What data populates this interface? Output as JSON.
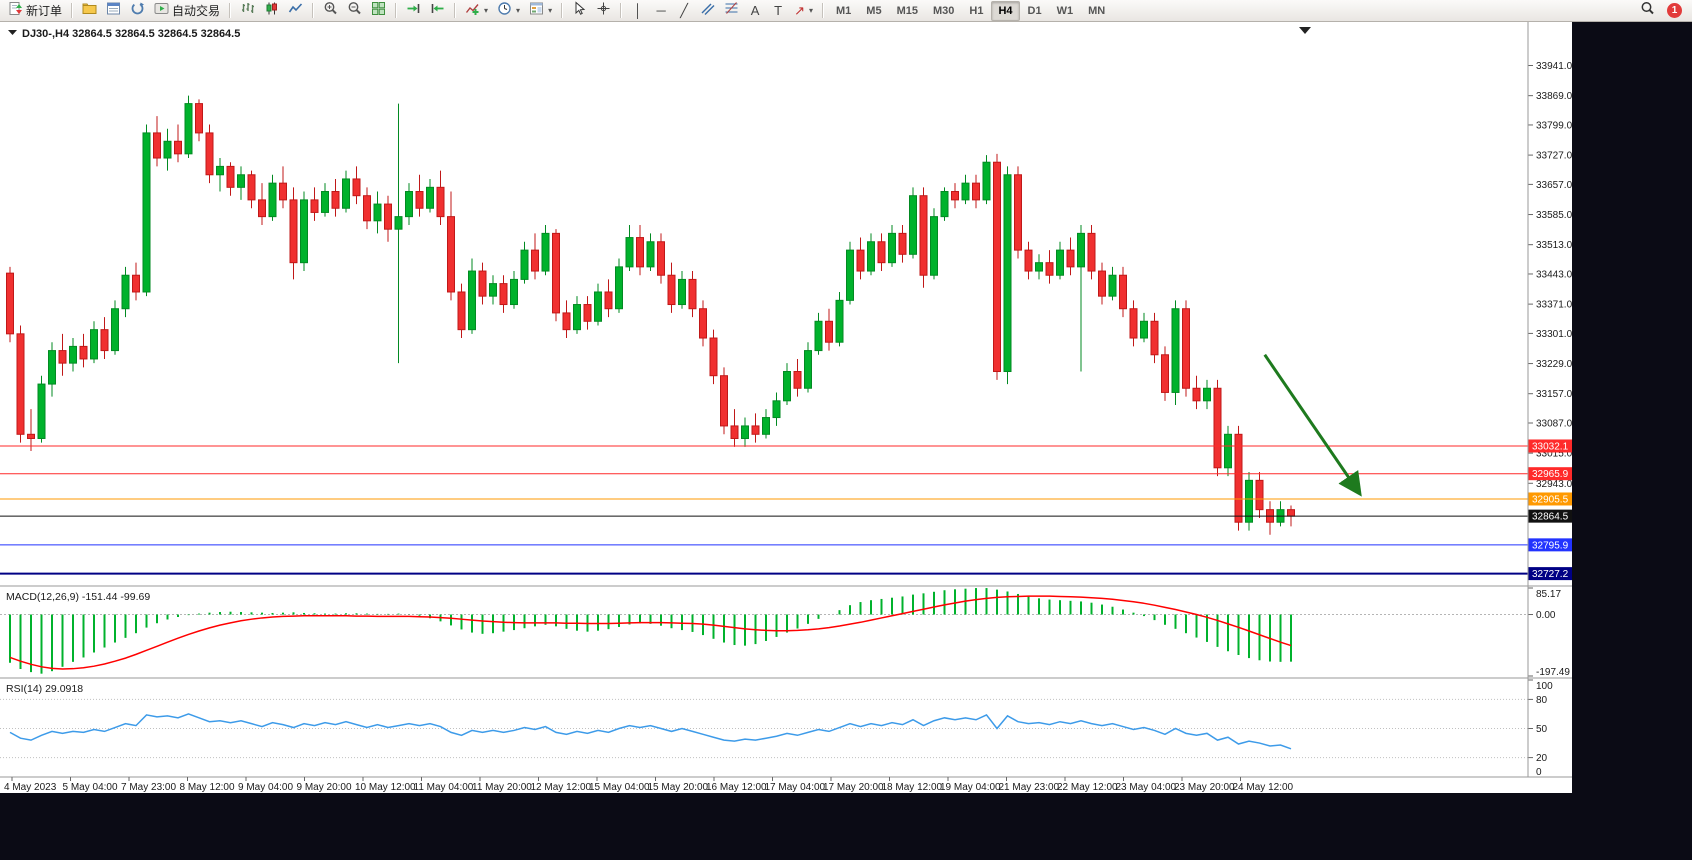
{
  "toolbar": {
    "new_order": "新订单",
    "autotrading": "自动交易",
    "timeframes": [
      "M1",
      "M5",
      "M15",
      "M30",
      "H1",
      "H4",
      "D1",
      "W1",
      "MN"
    ],
    "active_timeframe": "H4",
    "notification_badge": "1",
    "icons": {
      "caret": "▾",
      "vertical_line": "│",
      "horizontal_line": "─",
      "trendline": "╱",
      "text_tool": "A",
      "label_tool": "T",
      "arrows_tool": "↗"
    }
  },
  "chart_window": {
    "title": "DJ30-,H4  32864.5 32864.5 32864.5 32864.5",
    "symbol": "DJ30-",
    "period": "H4"
  },
  "chart_data": {
    "type": "candlestick",
    "symbol": "DJ30-",
    "timeframe": "H4",
    "y_range": [
      32700,
      33990
    ],
    "colors": {
      "up": "#00b22c",
      "down": "#f03030",
      "up_border": "#028a22",
      "down_border": "#c01818",
      "macd_hist": "#00b22c",
      "macd_signal": "#ff0000",
      "rsi": "#3d9be9"
    },
    "price_axis_ticks": [
      33941,
      33869,
      33799,
      33727,
      33657,
      33585,
      33513,
      33443,
      33371,
      33301,
      33229,
      33157,
      33087,
      33015,
      32943
    ],
    "levels": [
      {
        "value": 33032.1,
        "label": "33032.1",
        "color": "#ff2a2a",
        "width": 1
      },
      {
        "value": 32965.9,
        "label": "32965.9",
        "color": "#ff2a2a",
        "width": 1
      },
      {
        "value": 32905.5,
        "label": "32905.5",
        "color": "#ff9900",
        "width": 1
      },
      {
        "value": 32864.5,
        "label": "32864.5",
        "color": "#111111",
        "width": 1,
        "current": true
      },
      {
        "value": 32795.9,
        "label": "32795.9",
        "color": "#2233ff",
        "width": 1
      },
      {
        "value": 32727.2,
        "label": "32727.2",
        "color": "#000085",
        "width": 2
      }
    ],
    "annotations": {
      "arrow": {
        "color": "#1e7a1e",
        "from": {
          "bar": 119.5,
          "price": 33250
        },
        "to": {
          "bar": 128.5,
          "price": 32920
        }
      }
    },
    "time_axis": [
      "4 May 2023",
      "5 May 04:00",
      "7 May 23:00",
      "8 May 12:00",
      "9 May 04:00",
      "9 May 20:00",
      "10 May 12:00",
      "11 May 04:00",
      "11 May 20:00",
      "12 May 12:00",
      "15 May 04:00",
      "15 May 20:00",
      "16 May 12:00",
      "17 May 04:00",
      "17 May 20:00",
      "18 May 12:00",
      "19 May 04:00",
      "21 May 23:00",
      "22 May 12:00",
      "23 May 04:00",
      "23 May 20:00",
      "24 May 12:00"
    ],
    "ohlc": [
      [
        33445,
        33460,
        33280,
        33300
      ],
      [
        33300,
        33320,
        33040,
        33060
      ],
      [
        33060,
        33120,
        33020,
        33050
      ],
      [
        33050,
        33200,
        33040,
        33180
      ],
      [
        33180,
        33280,
        33150,
        33260
      ],
      [
        33260,
        33300,
        33200,
        33230
      ],
      [
        33230,
        33290,
        33210,
        33270
      ],
      [
        33270,
        33300,
        33220,
        33240
      ],
      [
        33240,
        33330,
        33230,
        33310
      ],
      [
        33310,
        33340,
        33240,
        33260
      ],
      [
        33260,
        33380,
        33250,
        33360
      ],
      [
        33360,
        33460,
        33340,
        33440
      ],
      [
        33440,
        33470,
        33380,
        33400
      ],
      [
        33400,
        33800,
        33390,
        33780
      ],
      [
        33780,
        33820,
        33700,
        33720
      ],
      [
        33720,
        33790,
        33690,
        33760
      ],
      [
        33760,
        33800,
        33710,
        33730
      ],
      [
        33730,
        33869,
        33720,
        33850
      ],
      [
        33850,
        33860,
        33760,
        33780
      ],
      [
        33780,
        33800,
        33660,
        33680
      ],
      [
        33680,
        33720,
        33640,
        33700
      ],
      [
        33700,
        33710,
        33630,
        33650
      ],
      [
        33650,
        33700,
        33620,
        33680
      ],
      [
        33680,
        33690,
        33600,
        33620
      ],
      [
        33620,
        33660,
        33560,
        33580
      ],
      [
        33580,
        33680,
        33570,
        33660
      ],
      [
        33660,
        33700,
        33600,
        33620
      ],
      [
        33620,
        33650,
        33430,
        33470
      ],
      [
        33470,
        33640,
        33450,
        33620
      ],
      [
        33620,
        33650,
        33570,
        33590
      ],
      [
        33590,
        33660,
        33580,
        33640
      ],
      [
        33640,
        33670,
        33580,
        33600
      ],
      [
        33600,
        33690,
        33590,
        33670
      ],
      [
        33670,
        33700,
        33610,
        33630
      ],
      [
        33630,
        33650,
        33550,
        33570
      ],
      [
        33570,
        33640,
        33540,
        33610
      ],
      [
        33610,
        33630,
        33520,
        33550
      ],
      [
        33550,
        33850,
        33230,
        33580
      ],
      [
        33580,
        33660,
        33560,
        33640
      ],
      [
        33640,
        33680,
        33580,
        33600
      ],
      [
        33600,
        33670,
        33590,
        33650
      ],
      [
        33650,
        33690,
        33560,
        33580
      ],
      [
        33580,
        33640,
        33380,
        33400
      ],
      [
        33400,
        33420,
        33290,
        33310
      ],
      [
        33310,
        33480,
        33300,
        33450
      ],
      [
        33450,
        33470,
        33370,
        33390
      ],
      [
        33390,
        33440,
        33370,
        33420
      ],
      [
        33420,
        33440,
        33350,
        33370
      ],
      [
        33370,
        33450,
        33360,
        33430
      ],
      [
        33430,
        33520,
        33420,
        33500
      ],
      [
        33500,
        33540,
        33430,
        33450
      ],
      [
        33450,
        33560,
        33440,
        33540
      ],
      [
        33540,
        33550,
        33330,
        33350
      ],
      [
        33350,
        33380,
        33290,
        33310
      ],
      [
        33310,
        33390,
        33300,
        33370
      ],
      [
        33370,
        33390,
        33310,
        33330
      ],
      [
        33330,
        33420,
        33320,
        33400
      ],
      [
        33400,
        33430,
        33340,
        33360
      ],
      [
        33360,
        33480,
        33350,
        33460
      ],
      [
        33460,
        33560,
        33450,
        33530
      ],
      [
        33530,
        33560,
        33440,
        33460
      ],
      [
        33460,
        33540,
        33450,
        33520
      ],
      [
        33520,
        33540,
        33420,
        33440
      ],
      [
        33440,
        33470,
        33350,
        33370
      ],
      [
        33370,
        33450,
        33360,
        33430
      ],
      [
        33430,
        33450,
        33340,
        33360
      ],
      [
        33360,
        33380,
        33270,
        33290
      ],
      [
        33290,
        33310,
        33180,
        33200
      ],
      [
        33200,
        33220,
        33060,
        33080
      ],
      [
        33080,
        33120,
        33030,
        33050
      ],
      [
        33050,
        33100,
        33030,
        33080
      ],
      [
        33080,
        33110,
        33040,
        33060
      ],
      [
        33060,
        33120,
        33050,
        33100
      ],
      [
        33100,
        33160,
        33080,
        33140
      ],
      [
        33140,
        33230,
        33130,
        33210
      ],
      [
        33210,
        33240,
        33150,
        33170
      ],
      [
        33170,
        33280,
        33160,
        33260
      ],
      [
        33260,
        33350,
        33250,
        33330
      ],
      [
        33330,
        33360,
        33260,
        33280
      ],
      [
        33280,
        33400,
        33270,
        33380
      ],
      [
        33380,
        33520,
        33370,
        33500
      ],
      [
        33500,
        33530,
        33430,
        33450
      ],
      [
        33450,
        33540,
        33440,
        33520
      ],
      [
        33520,
        33540,
        33450,
        33470
      ],
      [
        33470,
        33560,
        33460,
        33540
      ],
      [
        33540,
        33560,
        33470,
        33490
      ],
      [
        33490,
        33650,
        33480,
        33630
      ],
      [
        33630,
        33650,
        33410,
        33440
      ],
      [
        33440,
        33600,
        33430,
        33580
      ],
      [
        33580,
        33650,
        33570,
        33640
      ],
      [
        33640,
        33660,
        33600,
        33620
      ],
      [
        33620,
        33680,
        33610,
        33660
      ],
      [
        33660,
        33680,
        33600,
        33620
      ],
      [
        33620,
        33727,
        33610,
        33710
      ],
      [
        33710,
        33730,
        33190,
        33210
      ],
      [
        33210,
        33700,
        33180,
        33680
      ],
      [
        33680,
        33700,
        33480,
        33500
      ],
      [
        33500,
        33520,
        33430,
        33450
      ],
      [
        33450,
        33490,
        33430,
        33470
      ],
      [
        33470,
        33500,
        33420,
        33440
      ],
      [
        33440,
        33520,
        33430,
        33500
      ],
      [
        33500,
        33530,
        33440,
        33460
      ],
      [
        33460,
        33560,
        33210,
        33540
      ],
      [
        33540,
        33560,
        33430,
        33450
      ],
      [
        33450,
        33470,
        33370,
        33390
      ],
      [
        33390,
        33460,
        33380,
        33440
      ],
      [
        33440,
        33460,
        33340,
        33360
      ],
      [
        33360,
        33380,
        33270,
        33290
      ],
      [
        33290,
        33350,
        33280,
        33330
      ],
      [
        33330,
        33350,
        33230,
        33250
      ],
      [
        33250,
        33270,
        33140,
        33160
      ],
      [
        33160,
        33380,
        33130,
        33360
      ],
      [
        33360,
        33380,
        33150,
        33170
      ],
      [
        33170,
        33200,
        33120,
        33140
      ],
      [
        33140,
        33190,
        33120,
        33170
      ],
      [
        33170,
        33190,
        32960,
        32980
      ],
      [
        32980,
        33080,
        32960,
        33060
      ],
      [
        33060,
        33080,
        32830,
        32850
      ],
      [
        32850,
        32970,
        32830,
        32950
      ],
      [
        32950,
        32970,
        32860,
        32880
      ],
      [
        32880,
        32900,
        32820,
        32850
      ],
      [
        32850,
        32900,
        32840,
        32880
      ],
      [
        32880,
        32890,
        32840,
        32864.5
      ]
    ],
    "indicators": {
      "macd": {
        "label": "MACD(12,26,9)",
        "values": "-151.44 -99.69",
        "range": [
          -197.49,
          85.17
        ],
        "scale": [
          {
            "value": 85.17,
            "label": "85.17"
          },
          {
            "value": 0,
            "label": "0.00"
          },
          {
            "value": -197.49,
            "label": "-197.49"
          }
        ],
        "histogram": [
          -155,
          -175,
          -185,
          -190,
          -182,
          -168,
          -152,
          -138,
          -122,
          -106,
          -90,
          -75,
          -60,
          -42,
          -28,
          -16,
          -8,
          -2,
          3,
          6,
          8,
          9,
          8,
          7,
          6,
          5,
          6,
          7,
          5,
          4,
          3,
          3,
          4,
          4,
          3,
          2,
          2,
          3,
          1,
          -4,
          -12,
          -22,
          -35,
          -48,
          -58,
          -62,
          -60,
          -55,
          -50,
          -44,
          -38,
          -33,
          -38,
          -46,
          -52,
          -55,
          -52,
          -47,
          -40,
          -32,
          -28,
          -30,
          -36,
          -44,
          -50,
          -56,
          -66,
          -78,
          -90,
          -98,
          -100,
          -95,
          -85,
          -72,
          -58,
          -45,
          -30,
          -14,
          0,
          14,
          30,
          40,
          46,
          50,
          54,
          58,
          64,
          68,
          73,
          78,
          81,
          83,
          85,
          85,
          80,
          74,
          66,
          58,
          52,
          48,
          46,
          44,
          42,
          38,
          32,
          25,
          16,
          6,
          -5,
          -18,
          -33,
          -46,
          -60,
          -74,
          -88,
          -104,
          -118,
          -130,
          -140,
          -147,
          -151,
          -152,
          -151.44
        ],
        "signal": [
          -138,
          -150,
          -160,
          -168,
          -173,
          -175,
          -174,
          -171,
          -166,
          -159,
          -150,
          -140,
          -128,
          -115,
          -102,
          -89,
          -76,
          -64,
          -53,
          -43,
          -34,
          -27,
          -20,
          -15,
          -11,
          -8,
          -6,
          -5,
          -4,
          -4,
          -4,
          -4,
          -4,
          -5,
          -5,
          -6,
          -6,
          -6,
          -6,
          -7,
          -8,
          -10,
          -12,
          -15,
          -18,
          -21,
          -23,
          -25,
          -26,
          -27,
          -27,
          -27,
          -27,
          -28,
          -28,
          -29,
          -29,
          -29,
          -28,
          -27,
          -26,
          -26,
          -26,
          -27,
          -28,
          -29,
          -31,
          -34,
          -38,
          -42,
          -46,
          -49,
          -51,
          -52,
          -52,
          -51,
          -49,
          -46,
          -42,
          -37,
          -31,
          -25,
          -18,
          -11,
          -4,
          3,
          10,
          17,
          24,
          31,
          37,
          43,
          48,
          52,
          55,
          57,
          58,
          59,
          59,
          59,
          58,
          57,
          56,
          54,
          52,
          49,
          45,
          41,
          36,
          30,
          23,
          16,
          8,
          0,
          -9,
          -19,
          -30,
          -41,
          -53,
          -65,
          -77,
          -89,
          -99.69
        ]
      },
      "rsi": {
        "label": "RSI(14)",
        "value": "29.0918",
        "levels": [
          80,
          50,
          20
        ],
        "scale": [
          {
            "value": 100,
            "label": "100"
          },
          {
            "value": 80,
            "label": "80"
          },
          {
            "value": 50,
            "label": "50"
          },
          {
            "value": 20,
            "label": "20"
          },
          {
            "value": 0,
            "label": "0"
          }
        ],
        "values": [
          46,
          40,
          38,
          43,
          47,
          45,
          47,
          46,
          49,
          47,
          51,
          55,
          53,
          64,
          62,
          63,
          61,
          65,
          61,
          57,
          58,
          56,
          58,
          55,
          52,
          56,
          54,
          51,
          55,
          53,
          56,
          54,
          57,
          54,
          51,
          54,
          51,
          53,
          55,
          53,
          55,
          52,
          46,
          43,
          48,
          46,
          48,
          46,
          48,
          51,
          49,
          52,
          46,
          44,
          47,
          45,
          48,
          46,
          50,
          53,
          51,
          53,
          50,
          47,
          50,
          47,
          44,
          41,
          38,
          37,
          39,
          38,
          40,
          42,
          45,
          43,
          46,
          49,
          47,
          51,
          55,
          52,
          55,
          53,
          56,
          54,
          59,
          53,
          58,
          61,
          59,
          61,
          59,
          64,
          50,
          63,
          57,
          55,
          56,
          54,
          57,
          55,
          58,
          55,
          53,
          55,
          52,
          49,
          51,
          48,
          44,
          50,
          45,
          43,
          45,
          38,
          41,
          34,
          37,
          35,
          32,
          33,
          29.09
        ]
      }
    }
  }
}
